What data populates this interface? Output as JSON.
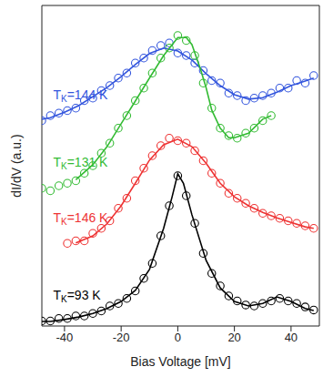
{
  "chart_data": {
    "type": "scatter",
    "x_label": "Bias Voltage [mV]",
    "y_label": "dI/dV (a.u.)",
    "xlim": [
      -48,
      50
    ],
    "xticks": [
      -40,
      -20,
      0,
      20,
      40
    ],
    "ylim": [
      0,
      6.4
    ],
    "yticks": [
      0,
      1,
      2,
      3,
      4,
      5,
      6
    ],
    "tick_labels": "x",
    "marker": "open_circle",
    "series": [
      {
        "name": "TK=144 K",
        "color": "#3355dd",
        "x": [
          -48,
          -45,
          -42,
          -39,
          -36,
          -33,
          -30,
          -27,
          -24,
          -21,
          -18,
          -15,
          -12,
          -9,
          -6,
          -3,
          0,
          3,
          6,
          9,
          12,
          15,
          18,
          21,
          24,
          27,
          30,
          33,
          36,
          39,
          42,
          45,
          48
        ],
        "values": [
          4.1,
          4.2,
          4.25,
          4.3,
          4.35,
          4.5,
          4.55,
          4.7,
          4.8,
          4.95,
          5.05,
          5.25,
          5.35,
          5.5,
          5.6,
          5.65,
          5.45,
          5.4,
          5.25,
          5.1,
          4.9,
          4.85,
          4.65,
          4.6,
          4.5,
          4.55,
          4.6,
          4.65,
          4.75,
          4.75,
          4.9,
          4.85,
          5.0
        ],
        "fit_x": [
          -48,
          -45,
          -40,
          -35,
          -30,
          -25,
          -20,
          -15,
          -10,
          -5,
          0,
          5,
          10,
          15,
          20,
          25,
          30,
          35,
          40,
          45,
          48
        ],
        "fit_values": [
          4.13,
          4.16,
          4.27,
          4.4,
          4.58,
          4.76,
          4.98,
          5.22,
          5.44,
          5.55,
          5.49,
          5.31,
          5.04,
          4.8,
          4.62,
          4.53,
          4.56,
          4.67,
          4.8,
          4.89,
          4.95
        ]
      },
      {
        "name": "TK=131 K",
        "color": "#33bb33",
        "x": [
          -48,
          -45,
          -42,
          -39,
          -36,
          -33,
          -30,
          -27,
          -24,
          -21,
          -18,
          -15,
          -12,
          -9,
          -6,
          -3,
          0,
          3,
          6,
          9,
          12,
          15,
          18,
          21,
          24,
          27,
          30,
          33
        ],
        "values": [
          2.75,
          2.7,
          2.8,
          2.85,
          2.9,
          3.05,
          3.2,
          3.45,
          3.65,
          3.95,
          4.2,
          4.5,
          4.75,
          5.05,
          5.35,
          5.55,
          5.8,
          5.7,
          5.4,
          4.85,
          4.35,
          3.95,
          3.8,
          3.75,
          3.85,
          3.95,
          4.1,
          4.2
        ],
        "fit_x": [
          -36,
          -30,
          -25,
          -20,
          -15,
          -10,
          -5,
          0,
          3,
          5,
          8,
          10,
          12,
          15,
          18,
          20,
          25,
          30,
          33
        ],
        "fit_values": [
          2.92,
          3.22,
          3.58,
          4.04,
          4.49,
          4.95,
          5.4,
          5.76,
          5.76,
          5.62,
          5.13,
          4.76,
          4.31,
          3.95,
          3.76,
          3.76,
          3.85,
          4.13,
          4.2
        ]
      },
      {
        "name": "TK=146 K",
        "color": "#ee3333",
        "x": [
          -39,
          -36,
          -33,
          -30,
          -27,
          -24,
          -21,
          -18,
          -15,
          -12,
          -9,
          -6,
          -3,
          0,
          3,
          6,
          9,
          12,
          15,
          18,
          21,
          24,
          27,
          30,
          33,
          36,
          39,
          42,
          45,
          48
        ],
        "values": [
          1.65,
          1.7,
          1.7,
          1.85,
          1.95,
          2.1,
          2.35,
          2.55,
          2.9,
          3.15,
          3.4,
          3.6,
          3.75,
          3.7,
          3.65,
          3.5,
          3.3,
          3.05,
          2.85,
          2.65,
          2.55,
          2.45,
          2.35,
          2.25,
          2.2,
          2.15,
          2.1,
          2.05,
          2.0,
          1.95
        ],
        "fit_x": [
          -36,
          -30,
          -25,
          -20,
          -15,
          -10,
          -5,
          0,
          5,
          10,
          15,
          20,
          25,
          30,
          35,
          40,
          45,
          48
        ],
        "fit_values": [
          1.66,
          1.8,
          2.04,
          2.4,
          2.85,
          3.31,
          3.62,
          3.73,
          3.58,
          3.25,
          2.85,
          2.58,
          2.4,
          2.27,
          2.16,
          2.07,
          1.98,
          1.95
        ]
      },
      {
        "name": "TK=93 K",
        "color": "#000000",
        "x": [
          -48,
          -45,
          -42,
          -39,
          -36,
          -33,
          -30,
          -27,
          -24,
          -21,
          -18,
          -15,
          -12,
          -9,
          -6,
          -3,
          0,
          3,
          6,
          9,
          12,
          15,
          18,
          21,
          24,
          27,
          30,
          33,
          36,
          39,
          42,
          45,
          48
        ],
        "values": [
          0.1,
          0.1,
          0.15,
          0.15,
          0.2,
          0.2,
          0.25,
          0.3,
          0.4,
          0.45,
          0.55,
          0.7,
          0.95,
          1.25,
          1.8,
          2.4,
          3.0,
          2.6,
          2.05,
          1.45,
          1.05,
          0.8,
          0.6,
          0.5,
          0.42,
          0.4,
          0.45,
          0.5,
          0.55,
          0.5,
          0.45,
          0.38,
          0.32
        ],
        "fit_x": [
          -48,
          -45,
          -40,
          -35,
          -30,
          -25,
          -20,
          -15,
          -10,
          -5,
          -2,
          0,
          2,
          5,
          10,
          15,
          20,
          25,
          30,
          35,
          40,
          45,
          48
        ],
        "fit_values": [
          0.09,
          0.09,
          0.13,
          0.18,
          0.25,
          0.35,
          0.49,
          0.71,
          1.13,
          1.95,
          2.58,
          3.04,
          2.85,
          2.22,
          1.31,
          0.76,
          0.49,
          0.4,
          0.45,
          0.58,
          0.49,
          0.35,
          0.31
        ]
      }
    ]
  }
}
